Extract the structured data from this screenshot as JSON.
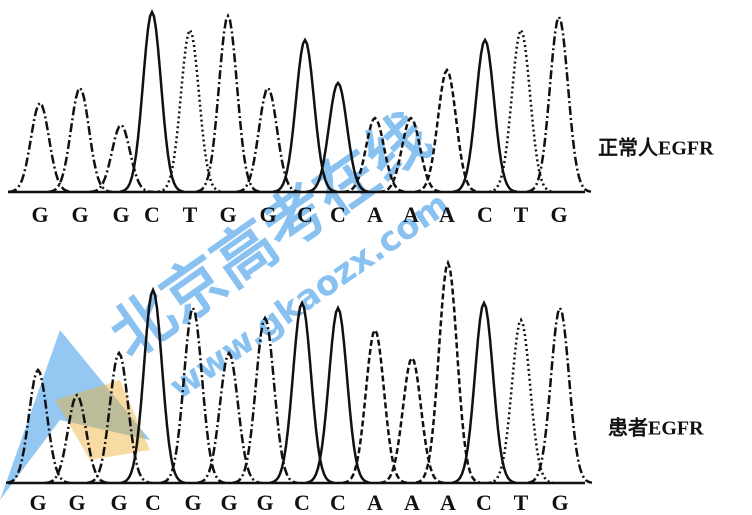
{
  "top": {
    "label": "正常人EGFR",
    "bases": [
      "G",
      "G",
      "G",
      "C",
      "T",
      "G",
      "G",
      "C",
      "C",
      "A",
      "A",
      "A",
      "C",
      "T",
      "G"
    ]
  },
  "bottom": {
    "label": "患者EGFR",
    "bases": [
      "G",
      "G",
      "G",
      "C",
      "G",
      "G",
      "G",
      "C",
      "C",
      "A",
      "A",
      "A",
      "C",
      "T",
      "G"
    ]
  },
  "watermark": {
    "name": "北京高考在线",
    "url": "www.gkaozx.com"
  }
}
